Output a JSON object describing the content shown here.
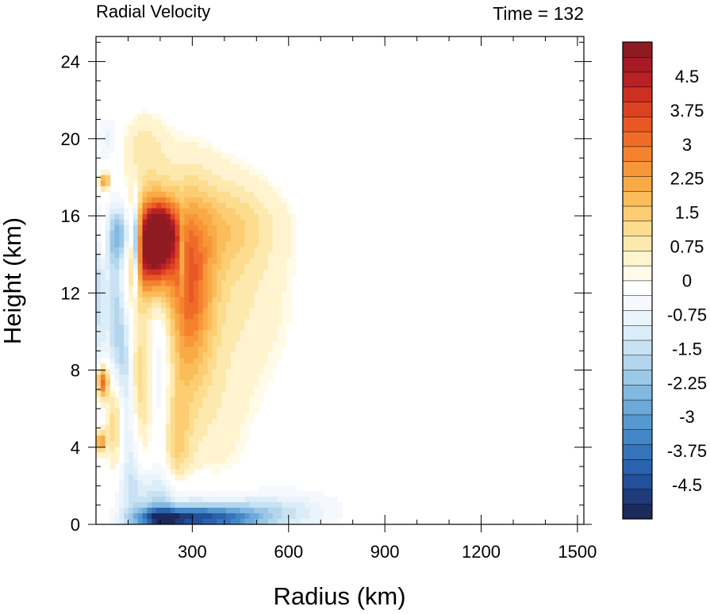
{
  "chart_data": {
    "type": "heatmap",
    "title_left": "Radial Velocity",
    "title_right": "Time = 132",
    "xlabel": "Radius (km)",
    "ylabel": "Height (km)",
    "xlim": [
      0,
      1520
    ],
    "ylim": [
      0,
      25.3
    ],
    "x_ticks": [
      300,
      600,
      900,
      1200,
      1500
    ],
    "y_ticks": [
      0,
      4,
      8,
      12,
      16,
      20,
      24
    ],
    "colorbar": {
      "levels": [
        -5.25,
        -5,
        -4.75,
        -4.5,
        -4.25,
        -4,
        -3.75,
        -3.5,
        -3.25,
        -3,
        -2.75,
        -2.5,
        -2.25,
        -2,
        -1.75,
        -1.5,
        -1.25,
        -1,
        -0.75,
        -0.5,
        -0.25,
        0,
        0.25,
        0.5,
        0.75,
        1,
        1.25,
        1.5,
        1.75,
        2,
        2.25,
        2.5,
        2.75,
        3,
        3.25,
        3.5,
        3.75,
        4,
        4.25,
        4.5,
        4.75,
        5,
        5.25
      ],
      "labels": [
        "4.5",
        "3.75",
        "3",
        "2.25",
        "1.5",
        "0.75",
        "0",
        "-0.75",
        "-1.5",
        "-2.25",
        "-3",
        "-3.75",
        "-4.5"
      ],
      "label_values": [
        4.5,
        3.75,
        3,
        2.25,
        1.5,
        0.75,
        0,
        -0.75,
        -1.5,
        -2.25,
        -3,
        -3.75,
        -4.5
      ],
      "colors_low_to_high": [
        "#1b2a5c",
        "#1f3b7a",
        "#23509a",
        "#2a62ad",
        "#3574bb",
        "#4487c6",
        "#5699d0",
        "#6ca9d8",
        "#83b9e0",
        "#9bc8e7",
        "#b3d6ee",
        "#c8e2f3",
        "#dbedf8",
        "#eaf4fb",
        "#f5f9fd",
        "#ffffff",
        "#fffbe8",
        "#fff4cf",
        "#fde9ae",
        "#fddc8e",
        "#fccd72",
        "#fbbd5a",
        "#f9aa47",
        "#f79739",
        "#f4822f",
        "#ef6c28",
        "#e85724",
        "#dc4222",
        "#cc3022",
        "#b92124",
        "#a51a25",
        "#8f1a22"
      ]
    },
    "features": [
      {
        "r": 170,
        "h": 14.5,
        "sr": 45,
        "sh": 1.6,
        "v": 5.5
      },
      {
        "r": 210,
        "h": 15.2,
        "sr": 30,
        "sh": 1.0,
        "v": 2.5
      },
      {
        "r": 290,
        "h": 12.0,
        "sr": 50,
        "sh": 3.2,
        "v": 2.5
      },
      {
        "r": 320,
        "h": 14.5,
        "sr": 130,
        "sh": 3.0,
        "v": 0.9
      },
      {
        "r": 420,
        "h": 15.5,
        "sr": 110,
        "sh": 1.5,
        "v": 0.8
      },
      {
        "r": 330,
        "h": 6.0,
        "sr": 110,
        "sh": 3.5,
        "v": 0.55
      },
      {
        "r": 480,
        "h": 11.0,
        "sr": 120,
        "sh": 3.0,
        "v": 0.35
      },
      {
        "r": 125,
        "h": 14.5,
        "sr": 8,
        "sh": 1.5,
        "v": -4.5
      },
      {
        "r": 270,
        "h": 14.0,
        "sr": 8,
        "sh": 1.5,
        "v": -1.5
      },
      {
        "r": 80,
        "h": 15.0,
        "sr": 35,
        "sh": 1.1,
        "v": -2.5
      },
      {
        "r": 60,
        "h": 11.0,
        "sr": 22,
        "sh": 3.0,
        "v": -1.8
      },
      {
        "r": 90,
        "h": 8.0,
        "sr": 18,
        "sh": 2.0,
        "v": -1.4
      },
      {
        "r": 20,
        "h": 7.4,
        "sr": 12,
        "sh": 0.6,
        "v": 3.5
      },
      {
        "r": 15,
        "h": 4.3,
        "sr": 10,
        "sh": 0.4,
        "v": 2.5
      },
      {
        "r": 25,
        "h": 17.8,
        "sr": 12,
        "sh": 0.3,
        "v": 2.5
      },
      {
        "r": 20,
        "h": 15.0,
        "sr": 10,
        "sh": 1.0,
        "v": 1.5
      },
      {
        "r": 60,
        "h": 5.5,
        "sr": 20,
        "sh": 1.8,
        "v": 1.6
      },
      {
        "r": 140,
        "h": 7.0,
        "sr": 25,
        "sh": 3.0,
        "v": 1.3
      },
      {
        "r": 200,
        "h": 8.0,
        "sr": 30,
        "sh": 3.5,
        "v": -1.1
      },
      {
        "r": 250,
        "h": 4.0,
        "sr": 30,
        "sh": 2.5,
        "v": 1.2
      },
      {
        "r": 110,
        "h": 3.5,
        "sr": 25,
        "sh": 2.0,
        "v": -1.3
      },
      {
        "r": 340,
        "h": 0.3,
        "sr": 120,
        "sh": 0.45,
        "v": -3.5
      },
      {
        "r": 470,
        "h": 0.6,
        "sr": 160,
        "sh": 0.8,
        "v": -1.2
      },
      {
        "r": 200,
        "h": 1.5,
        "sr": 80,
        "sh": 1.0,
        "v": -1.4
      },
      {
        "r": 200,
        "h": 0.3,
        "sr": 60,
        "sh": 0.4,
        "v": -3.0
      },
      {
        "r": 620,
        "h": 0.8,
        "sr": 100,
        "sh": 0.7,
        "v": -0.4
      },
      {
        "r": 150,
        "h": 19.5,
        "sr": 50,
        "sh": 1.2,
        "v": 0.8
      },
      {
        "r": 40,
        "h": 20.0,
        "sr": 25,
        "sh": 0.8,
        "v": -0.8
      },
      {
        "r": 10,
        "h": 12.0,
        "sr": 12,
        "sh": 3.0,
        "v": -1.5
      }
    ]
  }
}
